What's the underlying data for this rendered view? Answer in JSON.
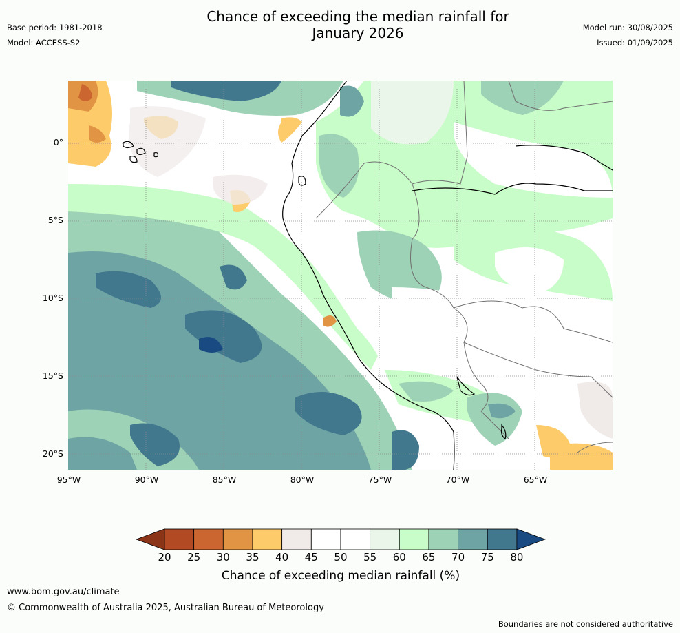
{
  "title_line1": "Chance of exceeding the median rainfall for",
  "title_line2": "January 2026",
  "base_period": "Base period: 1981-2018",
  "model": "Model: ACCESS-S2",
  "model_run": "Model run: 30/08/2025",
  "issued": "Issued: 01/09/2025",
  "lat_labels": [
    "0°",
    "5°S",
    "10°S",
    "15°S",
    "20°S"
  ],
  "lon_labels": [
    "95°W",
    "90°W",
    "85°W",
    "80°W",
    "75°W",
    "70°W",
    "65°W"
  ],
  "colorbar": {
    "title": "Chance of exceeding median rainfall (%)",
    "ticks": [
      "20",
      "25",
      "30",
      "35",
      "40",
      "45",
      "50",
      "55",
      "60",
      "65",
      "70",
      "75",
      "80"
    ],
    "colors": [
      "#8c3418",
      "#b24a24",
      "#cc6630",
      "#e09444",
      "#fecb6a",
      "#f0eae8",
      "#ffffff",
      "#ffffff",
      "#eaf6ea",
      "#c8fcc8",
      "#9ed2b6",
      "#6ea4a4",
      "#42788e",
      "#194a82"
    ]
  },
  "footer_url": "www.bom.gov.au/climate",
  "footer_copyright": "© Commonwealth of Australia 2025, Australian Bureau of Meteorology",
  "disclaimer": "Boundaries are not considered authoritative"
}
